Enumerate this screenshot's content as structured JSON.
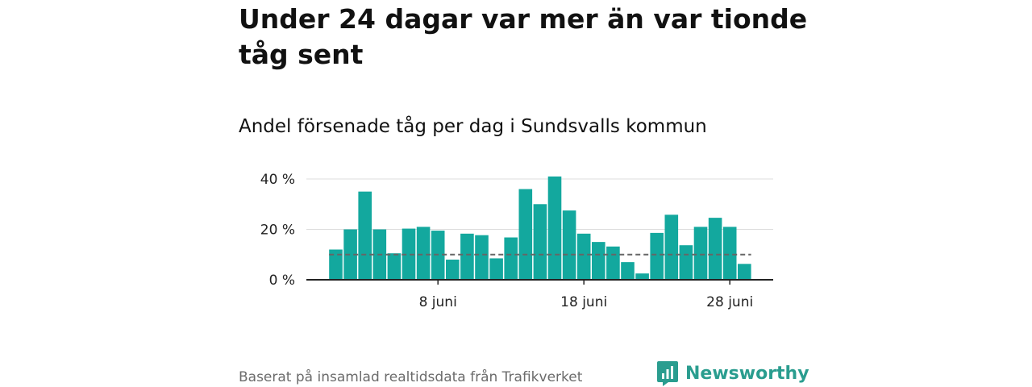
{
  "header": {
    "title": "Under 24 dagar var mer än var tionde tåg sent",
    "subtitle": "Andel försenade tåg per dag i Sundsvalls kommun"
  },
  "footer": {
    "source": "Baserat på insamlad realtidsdata från Trafikverket",
    "brand": "Newsworthy"
  },
  "colors": {
    "bar": "#13a89e",
    "reference_line": "#666666",
    "grid": "#dddddd",
    "axis": "#222222",
    "brand": "#2a9d8f"
  },
  "chart_data": {
    "type": "bar",
    "title": "Under 24 dagar var mer än var tionde tåg sent",
    "subtitle": "Andel försenade tåg per dag i Sundsvalls kommun",
    "x": [
      "2024-06-01",
      "2024-06-02",
      "2024-06-03",
      "2024-06-04",
      "2024-06-05",
      "2024-06-06",
      "2024-06-07",
      "2024-06-08",
      "2024-06-09",
      "2024-06-10",
      "2024-06-11",
      "2024-06-12",
      "2024-06-13",
      "2024-06-14",
      "2024-06-15",
      "2024-06-16",
      "2024-06-17",
      "2024-06-18",
      "2024-06-19",
      "2024-06-20",
      "2024-06-21",
      "2024-06-22",
      "2024-06-23",
      "2024-06-24",
      "2024-06-25",
      "2024-06-26",
      "2024-06-27",
      "2024-06-28",
      "2024-06-29"
    ],
    "values": [
      12,
      20,
      35,
      20,
      10.5,
      20.3,
      21,
      19.5,
      8,
      18.3,
      17.7,
      8.5,
      16.8,
      36,
      30,
      41,
      27.5,
      18.3,
      15,
      13.2,
      7,
      2.5,
      18.6,
      25.8,
      13.7,
      21,
      24.6,
      21,
      6.3
    ],
    "reference_value": 10,
    "xlabel": "",
    "ylabel": "",
    "ylim": [
      0,
      40
    ],
    "y_ticks": [
      0,
      20,
      40
    ],
    "y_tick_labels": [
      "0 %",
      "20 %",
      "40 %"
    ],
    "x_ticks": [
      "2024-06-08",
      "2024-06-18",
      "2024-06-28"
    ],
    "x_tick_labels": [
      "8 juni",
      "18 juni",
      "28 juni"
    ],
    "grid": true,
    "legend": "none"
  }
}
